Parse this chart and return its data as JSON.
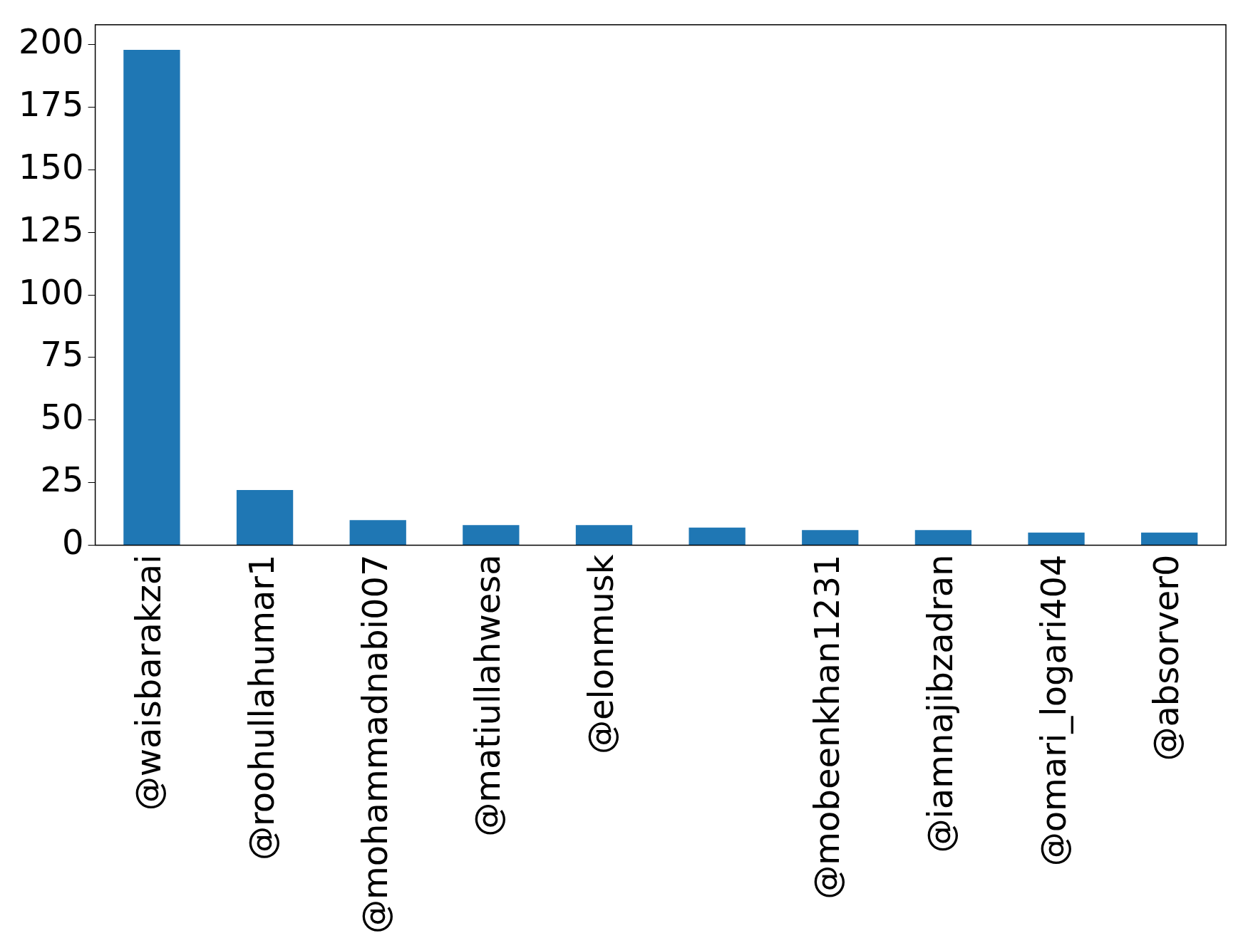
{
  "chart_data": {
    "type": "bar",
    "categories": [
      "@waisbarakzai",
      "@roohullahumar1",
      "@mohammadnabi007",
      "@matiullahwesa",
      "@elonmusk",
      null,
      "@mobeenkhan1231",
      "@iamnajibzadran",
      "@omari_logari404",
      "@absorver0"
    ],
    "values": [
      198,
      22,
      10,
      8,
      8,
      7,
      6,
      6,
      5,
      5
    ],
    "color": "#1f77b4",
    "ylim": [
      0,
      208
    ],
    "yticks": [
      0,
      25,
      50,
      75,
      100,
      125,
      150,
      175,
      200
    ],
    "grid": false,
    "legend": false
  }
}
